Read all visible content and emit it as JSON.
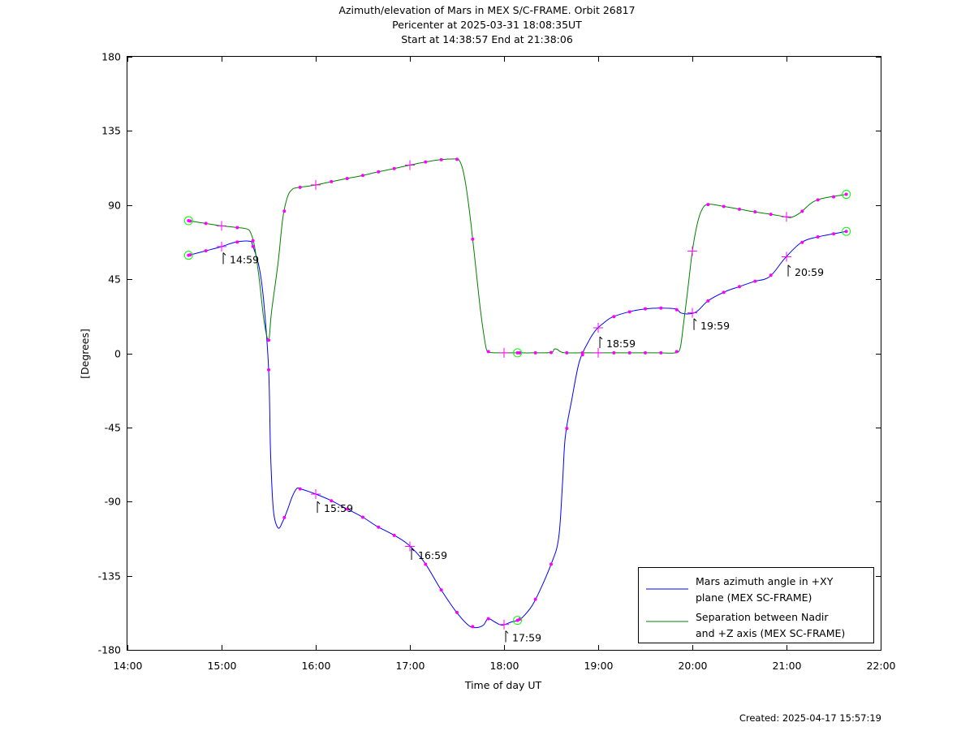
{
  "title_lines": [
    "Azimuth/elevation of Mars in MEX S/C-FRAME.  Orbit 26817",
    "Pericenter at 2025-03-31 18:08:35UT",
    "Start at 14:38:57 End at 21:38:06"
  ],
  "footer": "Created: 2025-04-17 15:57:19",
  "colors": {
    "azimuth": "#0000ff",
    "separation": "#008000",
    "marker": "#ff00ff",
    "endpoint": "#00ff00"
  },
  "chart_data": {
    "type": "line",
    "xlabel": "Time of day UT",
    "ylabel": "[Degrees]",
    "xlim": [
      14.0,
      22.0
    ],
    "ylim": [
      -180,
      180
    ],
    "x_ticks": [
      14,
      15,
      16,
      17,
      18,
      19,
      20,
      21,
      22
    ],
    "x_tick_labels": [
      "14:00",
      "15:00",
      "16:00",
      "17:00",
      "18:00",
      "19:00",
      "20:00",
      "21:00",
      "22:00"
    ],
    "y_ticks": [
      180,
      135,
      90,
      45,
      0,
      -45,
      -90,
      -135,
      -180
    ],
    "y_tick_labels": [
      "180",
      "135",
      "90",
      "45",
      "0",
      "-45",
      "-90",
      "-135",
      "-180"
    ],
    "legend_position": "bottom-right",
    "series": [
      {
        "name": "Mars azimuth angle in +XY plane (MEX SC-FRAME)",
        "legend_lines": [
          "Mars azimuth angle in +XY",
          "plane (MEX SC-FRAME)"
        ],
        "color": "#0000ff",
        "x": [
          14.649,
          14.817,
          14.983,
          15.15,
          15.3,
          15.33,
          15.4,
          15.45,
          15.5,
          15.52,
          15.55,
          15.6,
          15.65,
          15.7,
          15.75,
          15.8,
          15.85,
          15.98,
          16.15,
          16.3,
          16.5,
          16.65,
          16.82,
          16.98,
          17.15,
          17.32,
          17.48,
          17.62,
          17.7,
          17.78,
          17.83,
          17.9,
          17.98,
          18.08,
          18.15,
          18.2,
          18.32,
          18.5,
          18.58,
          18.62,
          18.65,
          18.72,
          18.8,
          18.9,
          18.98,
          19.05,
          19.15,
          19.35,
          19.5,
          19.65,
          19.82,
          19.88,
          19.97,
          20.05,
          20.17,
          20.35,
          20.5,
          20.65,
          20.82,
          20.98,
          21.15,
          21.32,
          21.635
        ],
        "values": [
          59.5,
          62.0,
          64.5,
          67.5,
          68.0,
          65.5,
          52.0,
          30.0,
          -10.0,
          -60.0,
          -95.0,
          -106.0,
          -102.0,
          -95.0,
          -87.0,
          -82.0,
          -82.5,
          -85.0,
          -89.0,
          -93.5,
          -99.5,
          -105.0,
          -110.0,
          -116.0,
          -126.5,
          -142.5,
          -156.0,
          -165.0,
          -166.5,
          -165.0,
          -161.0,
          -163.0,
          -165.0,
          -163.0,
          -162.0,
          -160.0,
          -151.0,
          -128.0,
          -112.0,
          -80.0,
          -51.0,
          -28.0,
          -5.0,
          7.5,
          14.5,
          18.0,
          22.0,
          25.5,
          27.0,
          27.5,
          27.0,
          24.5,
          24.0,
          25.5,
          32.0,
          37.5,
          40.5,
          43.5,
          46.5,
          57.5,
          67.0,
          70.5,
          74.0
        ]
      },
      {
        "name": "Separation between Nadir and +Z axis (MEX SC-FRAME)",
        "legend_lines": [
          "Separation between Nadir",
          "and +Z axis (MEX SC-FRAME)"
        ],
        "color": "#008000",
        "x": [
          14.649,
          14.817,
          14.983,
          15.15,
          15.27,
          15.31,
          15.35,
          15.4,
          15.45,
          15.5,
          15.53,
          15.6,
          15.65,
          15.7,
          15.75,
          15.8,
          15.98,
          16.15,
          16.32,
          16.5,
          16.65,
          16.82,
          16.98,
          17.15,
          17.32,
          17.48,
          17.52,
          17.56,
          17.6,
          17.65,
          17.7,
          17.75,
          17.8,
          17.82,
          17.85,
          17.95,
          18.0,
          18.15,
          18.3,
          18.5,
          18.53,
          18.56,
          18.6,
          18.65,
          18.8,
          19.0,
          19.3,
          19.5,
          19.65,
          19.82,
          19.87,
          19.9,
          19.95,
          20.0,
          20.05,
          20.1,
          20.17,
          20.35,
          20.5,
          20.65,
          20.82,
          20.98,
          21.05,
          21.15,
          21.32,
          21.635
        ],
        "values": [
          80.5,
          79.0,
          77.5,
          76.5,
          75.5,
          73.0,
          65.0,
          45.0,
          20.0,
          8.0,
          25.0,
          55.0,
          82.0,
          95.0,
          99.5,
          100.5,
          102.0,
          104.0,
          106.0,
          108.0,
          110.0,
          112.0,
          114.0,
          116.0,
          117.5,
          118.0,
          117.5,
          112.0,
          100.0,
          78.0,
          52.0,
          26.0,
          6.0,
          1.5,
          0.5,
          0.3,
          0.3,
          0.3,
          0.3,
          0.5,
          2.5,
          2.5,
          1.0,
          0.3,
          0.3,
          0.3,
          0.3,
          0.3,
          0.3,
          0.3,
          3.0,
          15.0,
          38.0,
          62.0,
          78.0,
          87.0,
          90.5,
          89.0,
          87.5,
          86.0,
          84.5,
          83.0,
          82.5,
          85.5,
          93.0,
          96.5
        ]
      }
    ],
    "annotations": [
      {
        "label": "14:59",
        "x": 14.983,
        "y": 64.5
      },
      {
        "label": "15:59",
        "x": 15.983,
        "y": -86.5
      },
      {
        "label": "16:59",
        "x": 16.983,
        "y": -115.0
      },
      {
        "label": "17:59",
        "x": 17.983,
        "y": -165.0
      },
      {
        "label": "18:59",
        "x": 18.983,
        "y": 13.5
      },
      {
        "label": "19:59",
        "x": 19.983,
        "y": 24.5
      },
      {
        "label": "20:59",
        "x": 20.983,
        "y": 57.0
      }
    ]
  }
}
